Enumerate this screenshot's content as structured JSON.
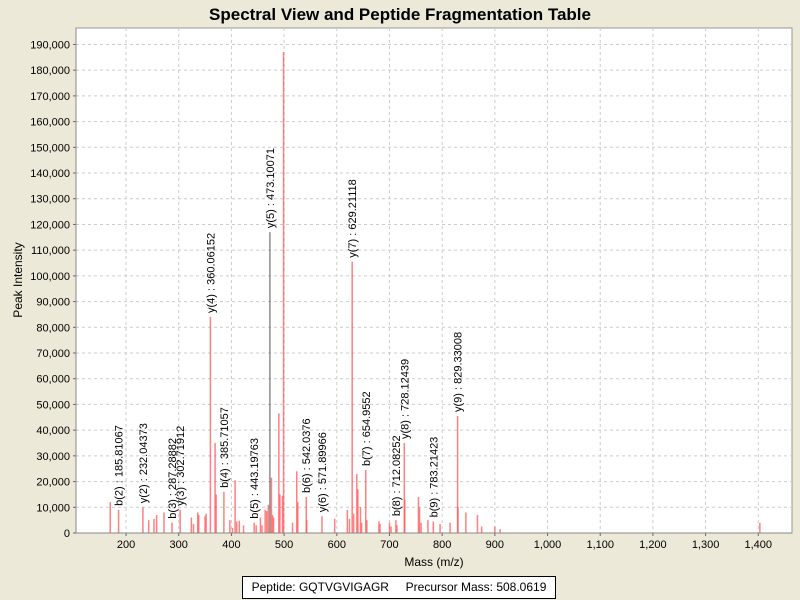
{
  "chart_data": {
    "type": "bar",
    "title": "Spectral View and Peptide Fragmentation Table",
    "xlabel": "Mass (m/z)",
    "ylabel": "Peak Intensity",
    "xlim": [
      105,
      1464
    ],
    "ylim": [
      0,
      196400
    ],
    "grid": true,
    "x_ticks": [
      200,
      300,
      400,
      500,
      600,
      700,
      800,
      900,
      1000,
      1100,
      1200,
      1300,
      1400
    ],
    "x_tick_labels": [
      "200",
      "300",
      "400",
      "500",
      "600",
      "700",
      "800",
      "900",
      "1,000",
      "1,100",
      "1,200",
      "1,300",
      "1,400"
    ],
    "y_ticks": [
      0,
      10000,
      20000,
      30000,
      40000,
      50000,
      60000,
      70000,
      80000,
      90000,
      100000,
      110000,
      120000,
      130000,
      140000,
      150000,
      160000,
      170000,
      180000,
      190000
    ],
    "y_tick_labels": [
      "0",
      "10,000",
      "20,000",
      "30,000",
      "40,000",
      "50,000",
      "60,000",
      "70,000",
      "80,000",
      "90,000",
      "100,000",
      "110,000",
      "120,000",
      "130,000",
      "140,000",
      "150,000",
      "160,000",
      "170,000",
      "180,000",
      "190,000"
    ],
    "peak_color": "#FF5555",
    "highlight_color": "#555555",
    "peaks": [
      {
        "mz": 170,
        "intensity": 12000
      },
      {
        "mz": 185.8,
        "intensity": 9000
      },
      {
        "mz": 232.0,
        "intensity": 10000
      },
      {
        "mz": 243,
        "intensity": 5000
      },
      {
        "mz": 253,
        "intensity": 5500
      },
      {
        "mz": 258,
        "intensity": 7000
      },
      {
        "mz": 272,
        "intensity": 8000
      },
      {
        "mz": 287.3,
        "intensity": 4000
      },
      {
        "mz": 302.7,
        "intensity": 9000
      },
      {
        "mz": 324,
        "intensity": 6000
      },
      {
        "mz": 328,
        "intensity": 3500
      },
      {
        "mz": 336,
        "intensity": 8000
      },
      {
        "mz": 338,
        "intensity": 7000
      },
      {
        "mz": 350,
        "intensity": 6500
      },
      {
        "mz": 352,
        "intensity": 7500
      },
      {
        "mz": 360.1,
        "intensity": 84000
      },
      {
        "mz": 369,
        "intensity": 35000
      },
      {
        "mz": 371,
        "intensity": 15000
      },
      {
        "mz": 385.7,
        "intensity": 16000
      },
      {
        "mz": 397,
        "intensity": 5000
      },
      {
        "mz": 402,
        "intensity": 2000
      },
      {
        "mz": 407,
        "intensity": 20500
      },
      {
        "mz": 410,
        "intensity": 4500
      },
      {
        "mz": 415,
        "intensity": 4800
      },
      {
        "mz": 423,
        "intensity": 3000
      },
      {
        "mz": 443.2,
        "intensity": 4000
      },
      {
        "mz": 447,
        "intensity": 3000
      },
      {
        "mz": 455,
        "intensity": 6000
      },
      {
        "mz": 458,
        "intensity": 3000
      },
      {
        "mz": 464,
        "intensity": 9000
      },
      {
        "mz": 467,
        "intensity": 8500
      },
      {
        "mz": 470,
        "intensity": 11000
      },
      {
        "mz": 473.1,
        "intensity": 117000,
        "highlight": true
      },
      {
        "mz": 476,
        "intensity": 21500
      },
      {
        "mz": 478,
        "intensity": 7000
      },
      {
        "mz": 480,
        "intensity": 6000
      },
      {
        "mz": 490,
        "intensity": 46500
      },
      {
        "mz": 492,
        "intensity": 15000
      },
      {
        "mz": 497,
        "intensity": 14500
      },
      {
        "mz": 499,
        "intensity": 187000
      },
      {
        "mz": 516,
        "intensity": 4000
      },
      {
        "mz": 524,
        "intensity": 24000
      },
      {
        "mz": 526,
        "intensity": 12000
      },
      {
        "mz": 542.0,
        "intensity": 14000
      },
      {
        "mz": 543,
        "intensity": 5000
      },
      {
        "mz": 571.9,
        "intensity": 6500
      },
      {
        "mz": 596,
        "intensity": 5500
      },
      {
        "mz": 620,
        "intensity": 9000
      },
      {
        "mz": 624,
        "intensity": 5500
      },
      {
        "mz": 629.2,
        "intensity": 105500
      },
      {
        "mz": 632,
        "intensity": 7500
      },
      {
        "mz": 638,
        "intensity": 23000
      },
      {
        "mz": 640,
        "intensity": 17000
      },
      {
        "mz": 645,
        "intensity": 10000
      },
      {
        "mz": 647,
        "intensity": 4000
      },
      {
        "mz": 655.0,
        "intensity": 24500
      },
      {
        "mz": 657,
        "intensity": 5000
      },
      {
        "mz": 680,
        "intensity": 4500
      },
      {
        "mz": 682,
        "intensity": 3500
      },
      {
        "mz": 700,
        "intensity": 4000
      },
      {
        "mz": 703,
        "intensity": 2500
      },
      {
        "mz": 712.1,
        "intensity": 5000
      },
      {
        "mz": 714,
        "intensity": 3000
      },
      {
        "mz": 728.1,
        "intensity": 35000
      },
      {
        "mz": 729,
        "intensity": 13000
      },
      {
        "mz": 755,
        "intensity": 14000
      },
      {
        "mz": 757,
        "intensity": 10000
      },
      {
        "mz": 760,
        "intensity": 4000
      },
      {
        "mz": 773,
        "intensity": 5000
      },
      {
        "mz": 783.2,
        "intensity": 4500
      },
      {
        "mz": 796,
        "intensity": 3500
      },
      {
        "mz": 815,
        "intensity": 4000
      },
      {
        "mz": 829.3,
        "intensity": 45500
      },
      {
        "mz": 830,
        "intensity": 10000
      },
      {
        "mz": 845,
        "intensity": 8000
      },
      {
        "mz": 867,
        "intensity": 7000
      },
      {
        "mz": 875,
        "intensity": 2500
      },
      {
        "mz": 900,
        "intensity": 2500
      },
      {
        "mz": 910,
        "intensity": 1500
      },
      {
        "mz": 1403,
        "intensity": 4000
      }
    ],
    "annotations": [
      {
        "label": "b(2) : 185.81067",
        "mz": 185.8,
        "intensity": 9000
      },
      {
        "label": "y(2) : 232.04373",
        "mz": 232.0,
        "intensity": 10000
      },
      {
        "label": "b(3) : 287.28882",
        "mz": 287.3,
        "intensity": 4000
      },
      {
        "label": "y(3) : 302.71912",
        "mz": 302.7,
        "intensity": 9000
      },
      {
        "label": "y(4) : 360.06152",
        "mz": 360.1,
        "intensity": 84000
      },
      {
        "label": "b(4) : 385.71057",
        "mz": 385.7,
        "intensity": 16000
      },
      {
        "label": "b(5) : 443.19763",
        "mz": 443.2,
        "intensity": 4000
      },
      {
        "label": "y(5) : 473.10071",
        "mz": 473.1,
        "intensity": 117000
      },
      {
        "label": "b(6) : 542.0376",
        "mz": 542.0,
        "intensity": 14000
      },
      {
        "label": "y(6) : 571.89966",
        "mz": 571.9,
        "intensity": 6500
      },
      {
        "label": "y(7) : 629.21118",
        "mz": 629.2,
        "intensity": 105500
      },
      {
        "label": "b(7) : 654.9552",
        "mz": 655.0,
        "intensity": 24500
      },
      {
        "label": "b(8) : 712.08252",
        "mz": 712.1,
        "intensity": 5000
      },
      {
        "label": "y(8) : 728.12439",
        "mz": 728.1,
        "intensity": 35000
      },
      {
        "label": "b(9) : 783.21423",
        "mz": 783.2,
        "intensity": 4500
      },
      {
        "label": "y(9) : 829.33008",
        "mz": 829.3,
        "intensity": 45500
      }
    ]
  },
  "legend": {
    "text": "Peptide: GQTVGVIGAGR     Precursor Mass: 508.0619"
  }
}
